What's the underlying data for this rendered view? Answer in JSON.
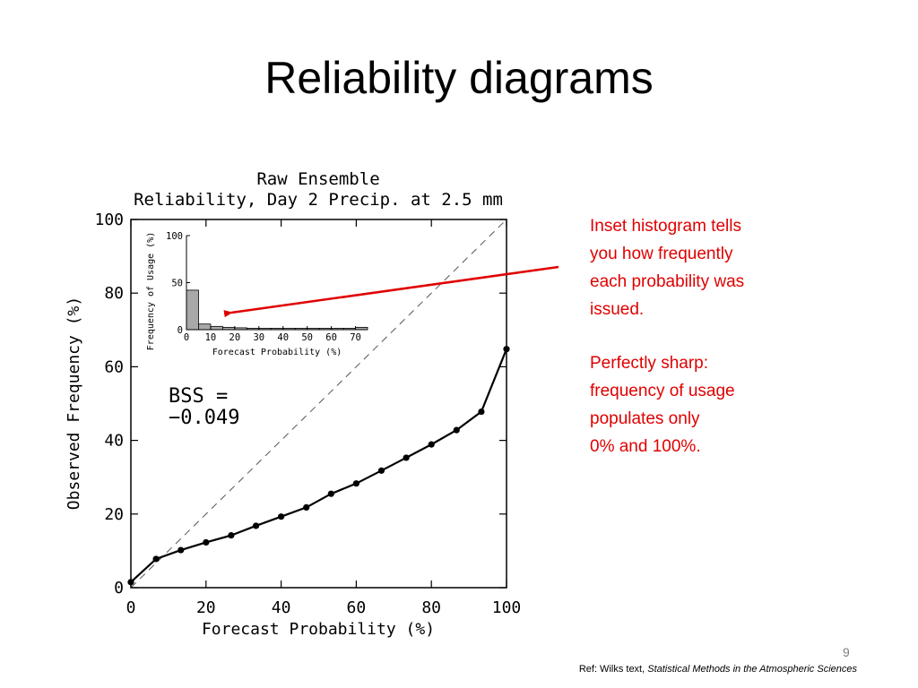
{
  "slide": {
    "title": "Reliability diagrams",
    "page_number": "9",
    "reference_prefix": "Ref: Wilks text, ",
    "reference_book": "Statistical Methods in the Atmospheric Sciences"
  },
  "annotations": {
    "note1": [
      "Inset histogram tells",
      "you how frequently",
      "each probability was",
      "issued."
    ],
    "note2": [
      "Perfectly sharp:",
      "frequency of usage",
      "populates only",
      "0% and 100%."
    ],
    "arrow_color": "#e00000"
  },
  "chart_data": [
    {
      "type": "line",
      "title": "Raw Ensemble",
      "subtitle": "Reliability, Day 2 Precip. at 2.5 mm",
      "xlabel": "Forecast Probability (%)",
      "ylabel": "Observed Frequency (%)",
      "xlim": [
        0,
        100
      ],
      "ylim": [
        0,
        100
      ],
      "xticks": [
        0,
        20,
        40,
        60,
        80,
        100
      ],
      "yticks": [
        0,
        20,
        40,
        60,
        80,
        100
      ],
      "diagonal": "dashed",
      "annotation": [
        "BSS =",
        "−0.049"
      ],
      "x": [
        0,
        6.7,
        13.3,
        20,
        26.7,
        33.3,
        40,
        46.7,
        53.3,
        60,
        66.7,
        73.3,
        80,
        86.7,
        93.3,
        100
      ],
      "y": [
        1.5,
        7.8,
        10.2,
        12.3,
        14.2,
        16.8,
        19.3,
        21.8,
        25.5,
        28.3,
        31.8,
        35.3,
        38.9,
        42.8,
        47.8,
        64.8
      ]
    },
    {
      "type": "bar",
      "xlabel": "Forecast Probability (%)",
      "ylabel": "Frequency of Usage (%)",
      "xlim": [
        0,
        75
      ],
      "ylim": [
        0,
        100
      ],
      "xticks": [
        0,
        10,
        20,
        30,
        40,
        50,
        60,
        70
      ],
      "yticks": [
        0,
        50,
        100
      ],
      "bin_width": 5,
      "bin_starts": [
        0,
        5,
        10,
        15,
        20,
        25,
        30,
        35,
        40,
        45,
        50,
        55,
        60,
        65,
        70
      ],
      "values": [
        42,
        6,
        3.5,
        2.5,
        2,
        1.5,
        1.5,
        1.5,
        1.5,
        1.5,
        1.5,
        1.5,
        1.5,
        1.5,
        2.5
      ],
      "bar_color": "#a8a8a8"
    }
  ]
}
